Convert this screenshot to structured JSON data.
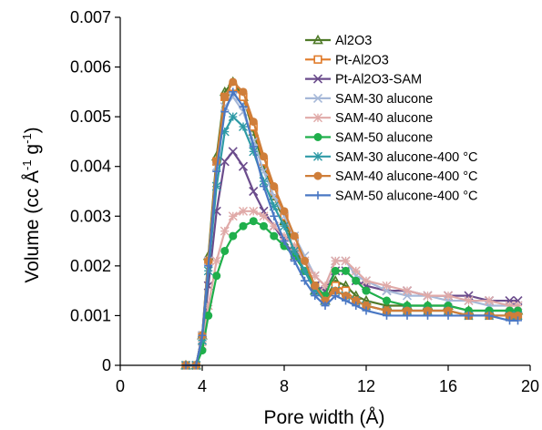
{
  "chart_data": {
    "type": "line",
    "xlabel": "Pore width (Å)",
    "ylabel_main": "Volume (cc Å",
    "ylabel_sup1": "-1",
    "ylabel_mid": " g",
    "ylabel_sup2": "-1",
    "ylabel_end": ")",
    "xlim": [
      0,
      20
    ],
    "ylim": [
      0,
      0.007
    ],
    "x_ticks": [
      "0",
      "4",
      "8",
      "12",
      "16",
      "20"
    ],
    "y_ticks": [
      "0",
      "0.001",
      "0.002",
      "0.003",
      "0.004",
      "0.005",
      "0.006",
      "0.007"
    ],
    "grid": false,
    "legend_position": "top-right",
    "series": [
      {
        "name": "Al2O3",
        "color": "#4f7a28",
        "marker": "triangle",
        "x": [
          3.2,
          3.7,
          4.0,
          4.3,
          4.7,
          5.1,
          5.5,
          6.0,
          6.5,
          7.0,
          7.5,
          8.0,
          8.5,
          9.0,
          9.5,
          10.0,
          10.5,
          11.0,
          11.5,
          12.0,
          13.0,
          14.0,
          15.0,
          16.0,
          17.0,
          18.0,
          19.0,
          19.4
        ],
        "y": [
          0.0,
          0.0,
          0.0006,
          0.0022,
          0.0042,
          0.0055,
          0.0057,
          0.0054,
          0.0047,
          0.004,
          0.0034,
          0.0029,
          0.0024,
          0.0019,
          0.0015,
          0.0013,
          0.0017,
          0.0016,
          0.0014,
          0.0013,
          0.0012,
          0.0012,
          0.0012,
          0.0012,
          0.0011,
          0.0011,
          0.0011,
          0.0011
        ]
      },
      {
        "name": "Pt-Al2O3",
        "color": "#e07b2a",
        "marker": "square",
        "x": [
          3.2,
          3.7,
          4.0,
          4.3,
          4.7,
          5.1,
          5.5,
          6.0,
          6.5,
          7.0,
          7.5,
          8.0,
          8.5,
          9.0,
          9.5,
          10.0,
          10.5,
          11.0,
          11.5,
          12.0,
          13.0,
          14.0,
          15.0,
          16.0,
          17.0,
          18.0,
          19.0,
          19.4
        ],
        "y": [
          0.0,
          0.0,
          0.0006,
          0.0021,
          0.0041,
          0.0054,
          0.0056,
          0.0054,
          0.0048,
          0.0041,
          0.0035,
          0.003,
          0.0025,
          0.002,
          0.0016,
          0.0013,
          0.0016,
          0.0015,
          0.0013,
          0.0012,
          0.0011,
          0.0011,
          0.0011,
          0.0011,
          0.001,
          0.001,
          0.001,
          0.001
        ]
      },
      {
        "name": "Pt-Al2O3-SAM",
        "color": "#6b4c8c",
        "marker": "x",
        "x": [
          3.2,
          3.7,
          4.0,
          4.3,
          4.7,
          5.1,
          5.5,
          6.0,
          6.5,
          7.0,
          7.5,
          8.0,
          8.5,
          9.0,
          9.5,
          10.0,
          10.5,
          11.0,
          11.5,
          12.0,
          13.0,
          14.0,
          15.0,
          16.0,
          17.0,
          18.0,
          19.0,
          19.4
        ],
        "y": [
          0.0,
          0.0,
          0.0005,
          0.0016,
          0.0031,
          0.0041,
          0.0043,
          0.004,
          0.0035,
          0.0031,
          0.0028,
          0.0025,
          0.0022,
          0.0019,
          0.0016,
          0.0015,
          0.0019,
          0.0019,
          0.0017,
          0.0016,
          0.0015,
          0.0015,
          0.0014,
          0.0014,
          0.0014,
          0.0013,
          0.0013,
          0.0013
        ]
      },
      {
        "name": "SAM-30 alucone",
        "color": "#a6b8d8",
        "marker": "x",
        "x": [
          3.2,
          3.7,
          4.0,
          4.3,
          4.7,
          5.1,
          5.5,
          6.0,
          6.5,
          7.0,
          7.5,
          8.0,
          8.5,
          9.0,
          9.5,
          10.0,
          10.5,
          11.0,
          11.5,
          12.0,
          13.0,
          14.0,
          15.0,
          16.0,
          17.0,
          18.0,
          19.0,
          19.4
        ],
        "y": [
          0.0,
          0.0,
          0.0006,
          0.0021,
          0.004,
          0.0052,
          0.0054,
          0.0051,
          0.0045,
          0.0039,
          0.0034,
          0.003,
          0.0026,
          0.0022,
          0.0018,
          0.0016,
          0.0021,
          0.0021,
          0.0018,
          0.0017,
          0.0015,
          0.0014,
          0.0014,
          0.0013,
          0.0013,
          0.0012,
          0.0012,
          0.0012
        ]
      },
      {
        "name": "SAM-40 alucone",
        "color": "#e0aaa8",
        "marker": "asterisk",
        "x": [
          3.2,
          3.7,
          4.0,
          4.3,
          4.7,
          5.1,
          5.5,
          6.0,
          6.5,
          7.0,
          7.5,
          8.0,
          8.5,
          9.0,
          9.5,
          10.0,
          10.5,
          11.0,
          11.5,
          12.0,
          13.0,
          14.0,
          15.0,
          16.0,
          17.0,
          18.0,
          19.0,
          19.4
        ],
        "y": [
          0.0,
          0.0,
          0.0004,
          0.0012,
          0.0021,
          0.0027,
          0.003,
          0.0031,
          0.0031,
          0.003,
          0.0028,
          0.0026,
          0.0024,
          0.0021,
          0.0018,
          0.0016,
          0.0021,
          0.0021,
          0.0019,
          0.0017,
          0.0016,
          0.0015,
          0.0014,
          0.0014,
          0.0013,
          0.0013,
          0.0012,
          0.0012
        ]
      },
      {
        "name": "SAM-50 alucone",
        "color": "#1faf4b",
        "marker": "circle",
        "x": [
          3.2,
          3.7,
          4.0,
          4.3,
          4.7,
          5.1,
          5.5,
          6.0,
          6.5,
          7.0,
          7.5,
          8.0,
          8.5,
          9.0,
          9.5,
          10.0,
          10.5,
          11.0,
          11.5,
          12.0,
          13.0,
          14.0,
          15.0,
          16.0,
          17.0,
          18.0,
          19.0,
          19.4
        ],
        "y": [
          0.0,
          0.0,
          0.0003,
          0.001,
          0.0018,
          0.0023,
          0.0026,
          0.0028,
          0.0029,
          0.0028,
          0.0026,
          0.0024,
          0.0022,
          0.0019,
          0.0016,
          0.0014,
          0.0019,
          0.0019,
          0.0017,
          0.0015,
          0.0013,
          0.0012,
          0.0012,
          0.0012,
          0.0011,
          0.0011,
          0.0011,
          0.0011
        ]
      },
      {
        "name": "SAM-30 alucone-400 °C",
        "color": "#2e9aa6",
        "marker": "asterisk",
        "x": [
          3.2,
          3.7,
          4.0,
          4.3,
          4.7,
          5.1,
          5.5,
          6.0,
          6.5,
          7.0,
          7.5,
          8.0,
          8.5,
          9.0,
          9.5,
          10.0,
          10.5,
          11.0,
          11.5,
          12.0,
          13.0,
          14.0,
          15.0,
          16.0,
          17.0,
          18.0,
          19.0,
          19.4
        ],
        "y": [
          0.0,
          0.0,
          0.0005,
          0.0019,
          0.0036,
          0.0047,
          0.005,
          0.0048,
          0.0043,
          0.0037,
          0.0032,
          0.0028,
          0.0023,
          0.0019,
          0.0015,
          0.0013,
          0.0015,
          0.0014,
          0.0013,
          0.0012,
          0.0011,
          0.0011,
          0.0011,
          0.0011,
          0.001,
          0.001,
          0.001,
          0.001
        ]
      },
      {
        "name": "SAM-40 alucone-400 °C",
        "color": "#cf7e3a",
        "marker": "circle",
        "x": [
          3.2,
          3.7,
          4.0,
          4.3,
          4.7,
          5.1,
          5.5,
          6.0,
          6.5,
          7.0,
          7.5,
          8.0,
          8.5,
          9.0,
          9.5,
          10.0,
          10.5,
          11.0,
          11.5,
          12.0,
          13.0,
          14.0,
          15.0,
          16.0,
          17.0,
          18.0,
          19.0,
          19.4
        ],
        "y": [
          0.0,
          0.0,
          0.0006,
          0.0021,
          0.0041,
          0.0054,
          0.0057,
          0.0055,
          0.0049,
          0.0042,
          0.0036,
          0.0031,
          0.0026,
          0.0021,
          0.0016,
          0.0013,
          0.0015,
          0.0014,
          0.0013,
          0.0012,
          0.0011,
          0.0011,
          0.0011,
          0.0011,
          0.001,
          0.001,
          0.001,
          0.001
        ]
      },
      {
        "name": "SAM-50 alucone-400 °C",
        "color": "#4a78c4",
        "marker": "plus",
        "x": [
          3.2,
          3.7,
          4.0,
          4.3,
          4.7,
          5.1,
          5.5,
          6.0,
          6.5,
          7.0,
          7.5,
          8.0,
          8.5,
          9.0,
          9.5,
          10.0,
          10.5,
          11.0,
          11.5,
          12.0,
          13.0,
          14.0,
          15.0,
          16.0,
          17.0,
          18.0,
          19.0,
          19.4
        ],
        "y": [
          0.0,
          0.0,
          0.0006,
          0.002,
          0.0039,
          0.0051,
          0.0055,
          0.0052,
          0.0044,
          0.0036,
          0.003,
          0.0025,
          0.0021,
          0.0017,
          0.0014,
          0.0012,
          0.0014,
          0.0013,
          0.0012,
          0.0011,
          0.001,
          0.001,
          0.001,
          0.001,
          0.001,
          0.001,
          0.0009,
          0.0009
        ]
      }
    ]
  }
}
